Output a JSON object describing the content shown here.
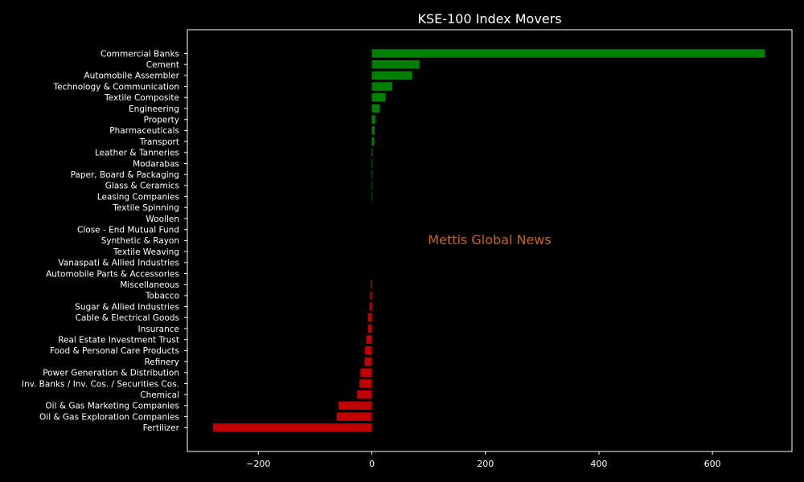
{
  "chart_data": {
    "type": "bar",
    "orientation": "horizontal",
    "title": "KSE-100 Index Movers",
    "watermark": "Mettis Global News",
    "xlabel": "",
    "ylabel": "",
    "xlim": [
      -325,
      740
    ],
    "xticks": [
      -200,
      0,
      200,
      400,
      600
    ],
    "xtick_labels": [
      "−200",
      "0",
      "200",
      "400",
      "600"
    ],
    "grid": false,
    "categories": [
      "Commercial Banks",
      "Cement",
      "Automobile Assembler",
      "Technology & Communication",
      "Textile Composite",
      "Engineering",
      "Property",
      "Pharmaceuticals",
      "Transport",
      "Leather & Tanneries",
      "Modarabas",
      "Paper, Board & Packaging",
      "Glass & Ceramics",
      "Leasing Companies",
      "Textile Spinning",
      "Woollen",
      "Close - End Mutual Fund",
      "Synthetic & Rayon",
      "Textile Weaving",
      "Vanaspati & Allied Industries",
      "Automobile Parts & Accessories",
      "Miscellaneous",
      "Tobacco",
      "Sugar & Allied Industries",
      "Cable & Electrical Goods",
      "Insurance",
      "Real Estate Investment Trust",
      "Food & Personal Care Products",
      "Refinery",
      "Power Generation & Distribution",
      "Inv. Banks / Inv. Cos. / Securities Cos.",
      "Chemical",
      "Oil & Gas Marketing Companies",
      "Oil & Gas Exploration Companies",
      "Fertilizer"
    ],
    "values": [
      692,
      84,
      71,
      36,
      24,
      14,
      6,
      5,
      4,
      1.5,
      1.2,
      1.2,
      1,
      1,
      0,
      0,
      0,
      0,
      0,
      0,
      0,
      -2,
      -3,
      -4,
      -7,
      -7,
      -10,
      -12,
      -13,
      -20,
      -22,
      -26,
      -59,
      -62,
      -280
    ],
    "colors": {
      "positive": "#008000",
      "negative": "#c00000",
      "watermark": "#c8641e",
      "axes": "#ffffff",
      "background": "#000000"
    }
  }
}
